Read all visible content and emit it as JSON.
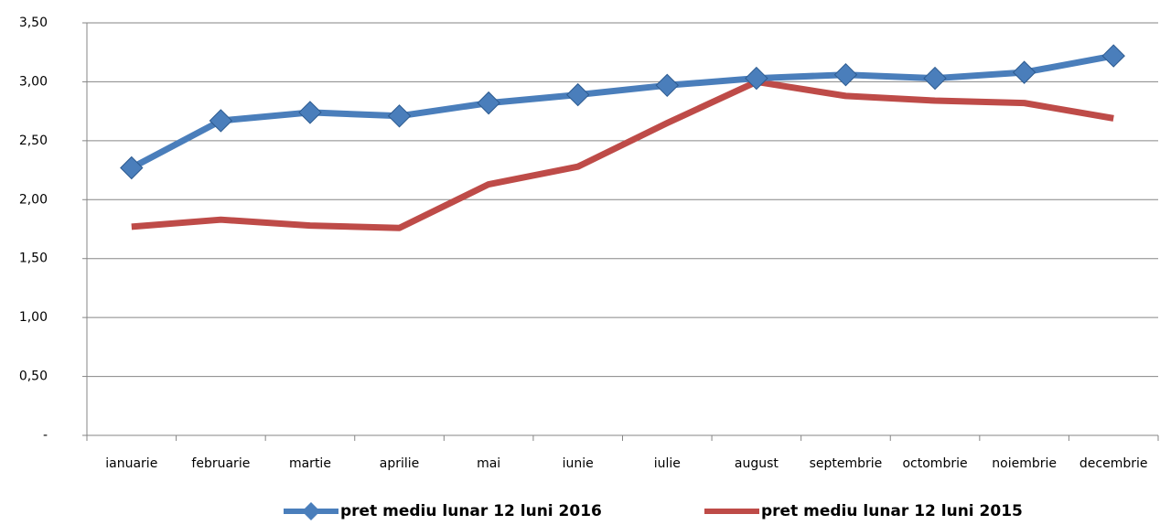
{
  "chart_data": {
    "type": "line",
    "categories": [
      "ianuarie",
      "februarie",
      "martie",
      "aprilie",
      "mai",
      "iunie",
      "iulie",
      "august",
      "septembrie",
      "octombrie",
      "noiembrie",
      "decembrie"
    ],
    "series": [
      {
        "name": "pret mediu lunar 12 luni 2016",
        "color": "#4a7ebb",
        "marker": "diamond",
        "values": [
          2.27,
          2.67,
          2.74,
          2.71,
          2.82,
          2.89,
          2.97,
          3.03,
          3.06,
          3.03,
          3.08,
          3.22
        ]
      },
      {
        "name": "pret mediu lunar 12 luni 2015",
        "color": "#be4b48",
        "values": [
          1.77,
          1.83,
          1.78,
          1.76,
          2.13,
          2.28,
          2.65,
          3.0,
          2.88,
          2.84,
          2.82,
          2.69
        ]
      }
    ],
    "ylim": [
      0,
      3.5
    ],
    "yticks": [
      {
        "value": 0,
        "label": "-"
      },
      {
        "value": 0.5,
        "label": "0,50"
      },
      {
        "value": 1,
        "label": "1,00"
      },
      {
        "value": 1.5,
        "label": "1,50"
      },
      {
        "value": 2,
        "label": "2,00"
      },
      {
        "value": 2.5,
        "label": "2,50"
      },
      {
        "value": 3,
        "label": "3,00"
      },
      {
        "value": 3.5,
        "label": "3,50"
      }
    ],
    "grid": true,
    "legend": "bottom"
  }
}
